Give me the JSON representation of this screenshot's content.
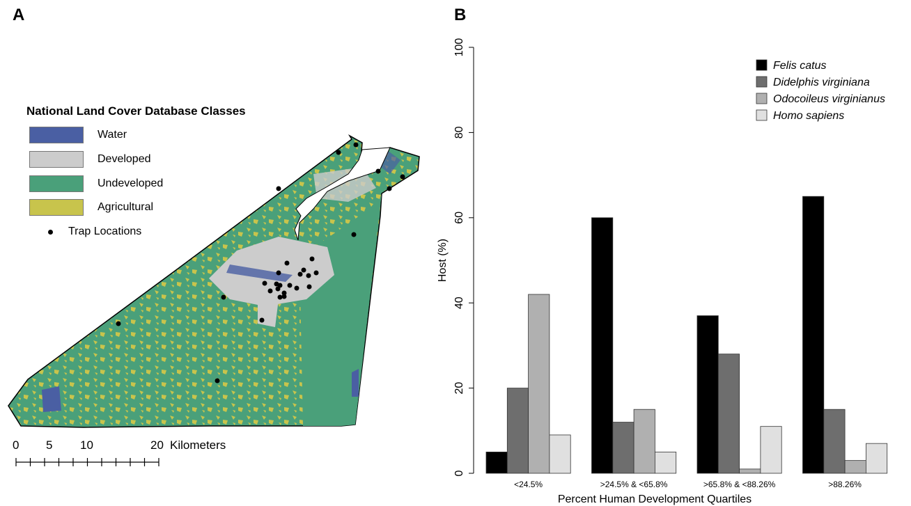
{
  "panel_a": {
    "label": "A",
    "legend": {
      "title": "National Land Cover Database Classes",
      "items": [
        {
          "label": "Water",
          "color": "#4a5fa3"
        },
        {
          "label": "Developed",
          "color": "#cccccc"
        },
        {
          "label": "Undeveloped",
          "color": "#4aa07a"
        },
        {
          "label": "Agricultural",
          "color": "#c8c44c"
        }
      ],
      "trap_label": "Trap Locations"
    },
    "scale_bar": {
      "ticks": [
        "0",
        "5",
        "10",
        "20"
      ],
      "unit": "Kilometers"
    }
  },
  "panel_b": {
    "label": "B"
  },
  "chart_data": {
    "type": "bar",
    "xlabel": "Percent Human Development Quartiles",
    "ylabel": "Host (%)",
    "ylim": [
      0,
      100
    ],
    "yticks": [
      0,
      20,
      40,
      60,
      80,
      100
    ],
    "categories": [
      "<24.5%",
      ">24.5% & <65.8%",
      ">65.8% & <88.26%",
      ">88.26%"
    ],
    "series": [
      {
        "name": "Felis catus",
        "color": "#000000",
        "values": [
          5,
          60,
          37,
          65
        ]
      },
      {
        "name": "Didelphis virginiana",
        "color": "#6e6e6e",
        "values": [
          20,
          12,
          28,
          15
        ]
      },
      {
        "name": "Odocoileus virginianus",
        "color": "#b0b0b0",
        "values": [
          42,
          15,
          1,
          3
        ]
      },
      {
        "name": "Homo sapiens",
        "color": "#e0e0e0",
        "values": [
          9,
          5,
          11,
          7
        ]
      }
    ],
    "legend_position": "top-right",
    "grid": false
  }
}
